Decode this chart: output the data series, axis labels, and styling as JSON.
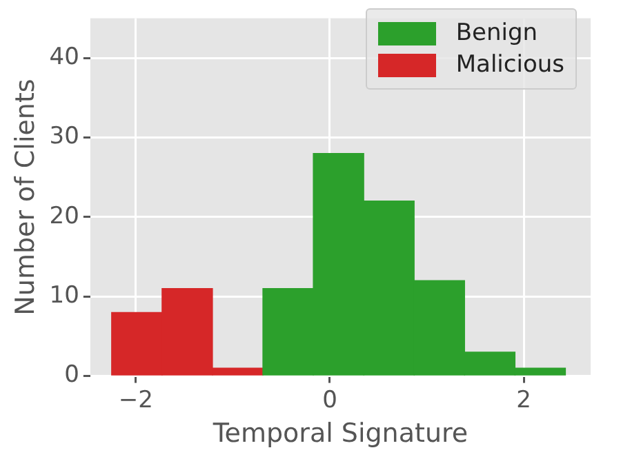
{
  "chart_data": {
    "type": "histogram",
    "xlabel": "Temporal Signature",
    "ylabel": "Number of Clients",
    "xlim": [
      -2.47,
      2.69
    ],
    "ylim": [
      0,
      45
    ],
    "xticks": [
      -2,
      0,
      2
    ],
    "yticks": [
      0,
      10,
      20,
      30,
      40
    ],
    "grid": true,
    "legend": "top right",
    "bins": [
      -2.25,
      -1.73,
      -1.21,
      -0.69,
      -0.17,
      0.35,
      0.87,
      1.39,
      1.91,
      2.43
    ],
    "series": [
      {
        "name": "Benign",
        "color": "#2ca02c",
        "values": [
          null,
          null,
          null,
          11,
          28,
          22,
          12,
          3,
          1
        ]
      },
      {
        "name": "Malicious",
        "color": "#d62728",
        "values": [
          8,
          11,
          1,
          null,
          null,
          null,
          null,
          null,
          null
        ]
      }
    ]
  }
}
